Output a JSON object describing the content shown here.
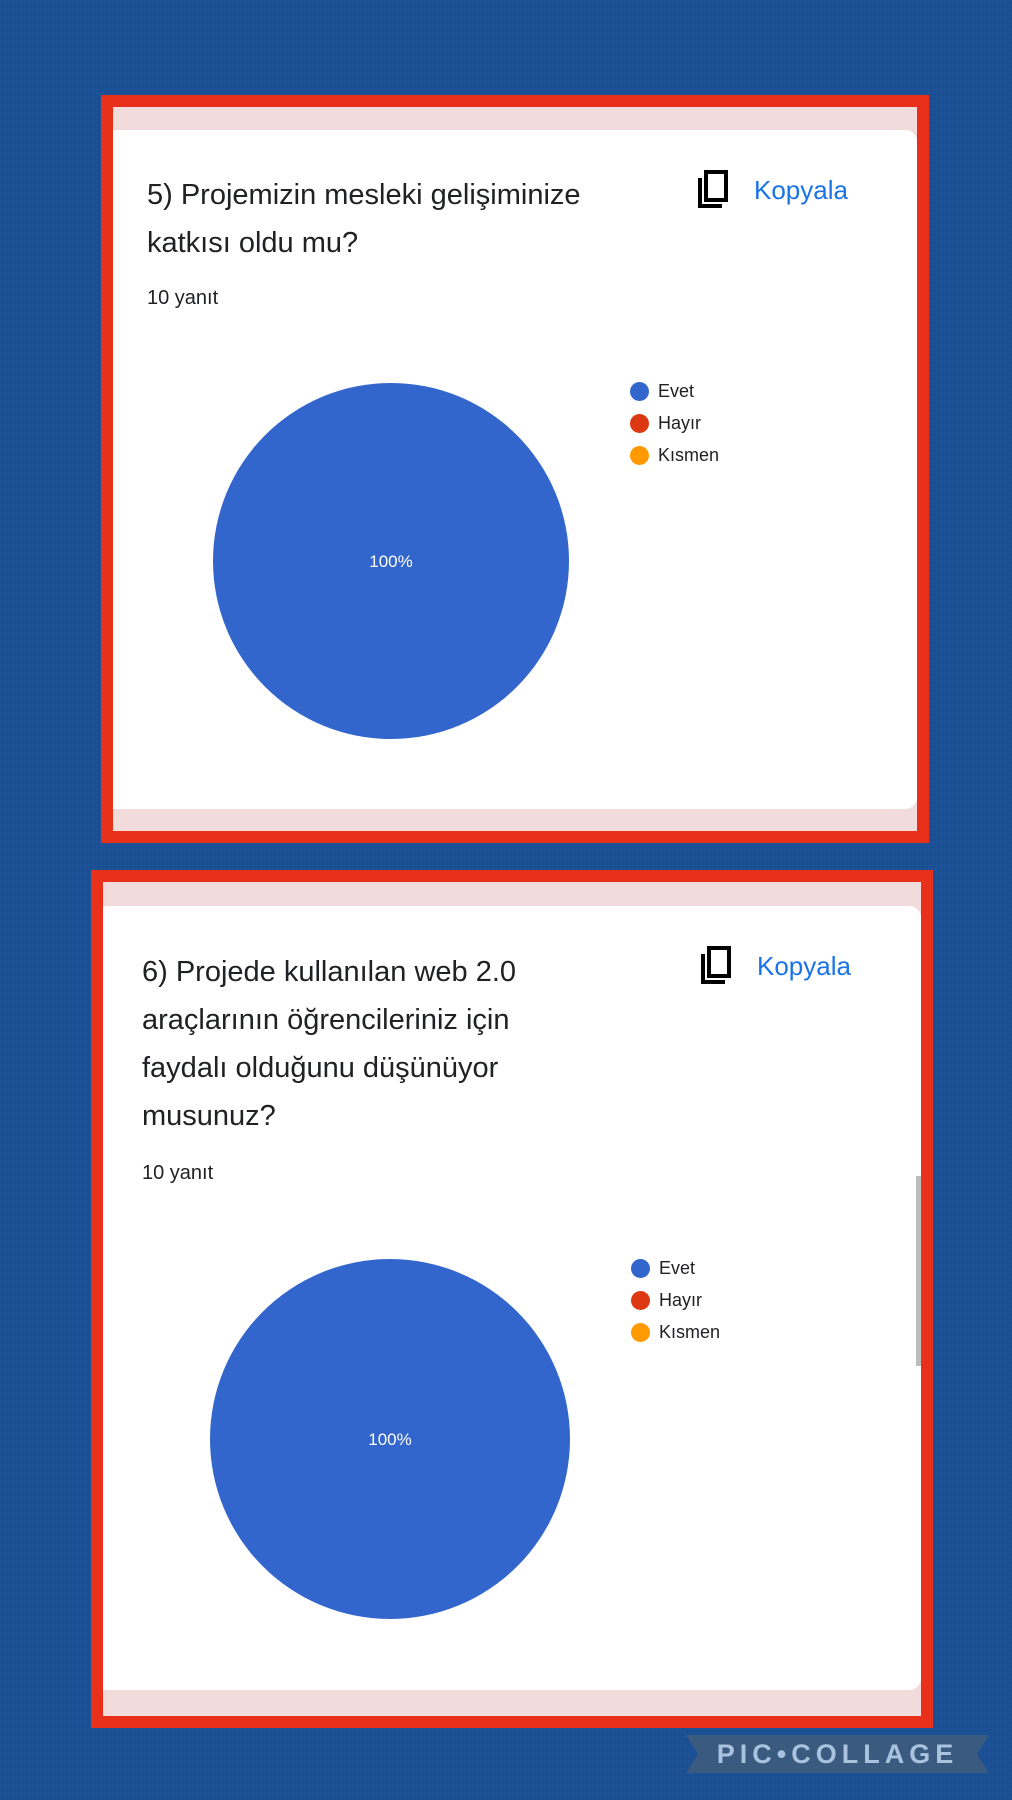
{
  "cards": [
    {
      "title_lines": [
        "5) Projemizin mesleki gelişiminize",
        "katkısı oldu mu?"
      ],
      "responses": "10 yanıt",
      "copy_label": "Kopyala",
      "pie_label": "100%"
    },
    {
      "title_lines": [
        "6) Projede kullanılan web 2.0",
        "araçlarının öğrencileriniz için",
        "faydalı olduğunu düşünüyor",
        "musunuz?"
      ],
      "responses": "10 yanıt",
      "copy_label": "Kopyala",
      "pie_label": "100%"
    }
  ],
  "chart_data": [
    {
      "type": "pie",
      "categories": [
        "Evet",
        "Hayır",
        "Kısmen"
      ],
      "values": [
        100,
        0,
        0
      ],
      "colors": [
        "#3366cc",
        "#dc3912",
        "#ff9900"
      ],
      "legend": "right"
    },
    {
      "type": "pie",
      "categories": [
        "Evet",
        "Hayır",
        "Kısmen"
      ],
      "values": [
        100,
        0,
        0
      ],
      "colors": [
        "#3366cc",
        "#dc3912",
        "#ff9900"
      ],
      "legend": "right"
    }
  ],
  "watermark": "PIC•COLLAGE"
}
